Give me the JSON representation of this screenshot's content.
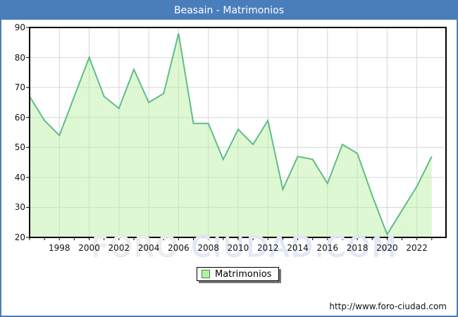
{
  "window": {
    "title": "Beasain - Matrimonios"
  },
  "colors": {
    "frame_border": "#4a7ebb",
    "titlebar_bg": "#4a7ebb",
    "title_text": "#ffffff",
    "plot_border": "#000000",
    "grid": "#d6d6d6",
    "line": "#5fbd86",
    "area_fill": "#b9ef9f",
    "legend_swatch_fill": "#b4f09f",
    "legend_swatch_border": "#3e8e41"
  },
  "chart_data": {
    "type": "area",
    "title": "Beasain - Matrimonios",
    "x": [
      1996,
      1997,
      1998,
      1999,
      2000,
      2001,
      2002,
      2003,
      2004,
      2005,
      2006,
      2007,
      2008,
      2009,
      2010,
      2011,
      2012,
      2013,
      2014,
      2015,
      2016,
      2017,
      2018,
      2019,
      2020,
      2021,
      2022,
      2023
    ],
    "series": [
      {
        "name": "Matrimonios",
        "values": [
          67,
          59,
          54,
          67,
          80,
          67,
          63,
          76,
          65,
          68,
          88,
          58,
          58,
          46,
          56,
          51,
          59,
          36,
          47,
          46,
          38,
          51,
          48,
          34,
          21,
          29,
          37,
          47
        ]
      }
    ],
    "xlabel": "",
    "ylabel": "",
    "ylim": [
      20,
      90
    ],
    "yticks": [
      20,
      30,
      40,
      50,
      60,
      70,
      80,
      90
    ],
    "xticks": [
      1998,
      2000,
      2002,
      2004,
      2006,
      2008,
      2010,
      2012,
      2014,
      2016,
      2018,
      2020,
      2022
    ],
    "grid": true,
    "legend_position": "bottom-center"
  },
  "legend": {
    "label": "Matrimonios"
  },
  "watermark": {
    "part1": "FORO ",
    "part2": "CIUDAD.COM"
  },
  "footer": {
    "url": "http://www.foro-ciudad.com"
  }
}
